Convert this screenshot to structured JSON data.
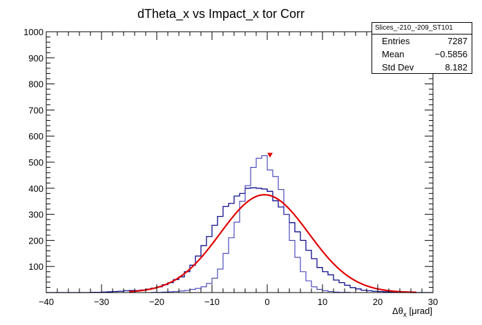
{
  "chart_data": {
    "type": "histogram",
    "title": "dTheta_x vs Impact_x tor Corr",
    "xlabel": "Δθ_x [μrad]",
    "xlabel_main": "Δθ",
    "xlabel_sub": "x",
    "xlabel_unit": " [μrad]",
    "xlim": [
      -40,
      30
    ],
    "ylim": [
      0,
      1000
    ],
    "x_ticks": [
      -40,
      -30,
      -20,
      -10,
      0,
      10,
      20,
      30
    ],
    "y_ticks": [
      100,
      200,
      300,
      400,
      500,
      600,
      700,
      800,
      900,
      1000
    ],
    "y_tick_labels": [
      "100",
      "200",
      "300",
      "400",
      "500",
      "600",
      "700",
      "800",
      "900",
      "1000"
    ],
    "x_tick_labels": [
      "−40",
      "−30",
      "−20",
      "−10",
      "0",
      "10",
      "20",
      "30"
    ],
    "bin_width": 1,
    "series": [
      {
        "kind": "histogram",
        "color": "#0a0a8c",
        "x": [
          -40,
          -39,
          -38,
          -37,
          -36,
          -35,
          -34,
          -33,
          -32,
          -31,
          -30,
          -29,
          -28,
          -27,
          -26,
          -25,
          -24,
          -23,
          -22,
          -21,
          -20,
          -19,
          -18,
          -17,
          -16,
          -15,
          -14,
          -13,
          -12,
          -11,
          -10,
          -9,
          -8,
          -7,
          -6,
          -5,
          -4,
          -3,
          -2,
          -1,
          0,
          1,
          2,
          3,
          4,
          5,
          6,
          7,
          8,
          9,
          10,
          11,
          12,
          13,
          14,
          15,
          16,
          17,
          18,
          19,
          20,
          21,
          22,
          23,
          24,
          25,
          26,
          27,
          28,
          29
        ],
        "values": [
          0,
          0,
          0,
          0,
          0,
          0,
          0,
          0,
          1,
          1,
          2,
          3,
          4,
          5,
          7,
          8,
          8,
          10,
          13,
          17,
          22,
          30,
          38,
          50,
          60,
          80,
          105,
          140,
          180,
          215,
          258,
          292,
          330,
          342,
          370,
          380,
          400,
          402,
          400,
          397,
          388,
          352,
          328,
          300,
          268,
          233,
          200,
          162,
          130,
          96,
          80,
          68,
          48,
          38,
          28,
          19,
          14,
          9,
          7,
          5,
          4,
          3,
          2,
          1,
          1,
          1,
          0,
          0,
          0,
          0
        ]
      },
      {
        "kind": "histogram",
        "color": "#3a3ab8",
        "x": [
          -40,
          -39,
          -38,
          -37,
          -36,
          -35,
          -34,
          -33,
          -32,
          -31,
          -30,
          -29,
          -28,
          -27,
          -26,
          -25,
          -24,
          -23,
          -22,
          -21,
          -20,
          -19,
          -18,
          -17,
          -16,
          -15,
          -14,
          -13,
          -12,
          -11,
          -10,
          -9,
          -8,
          -7,
          -6,
          -5,
          -4,
          -3,
          -2,
          -1,
          0,
          1,
          2,
          3,
          4,
          5,
          6,
          7,
          8,
          9,
          10,
          11,
          12,
          13,
          14,
          15,
          16,
          17,
          18,
          19,
          20,
          21,
          22,
          23,
          24,
          25,
          26,
          27,
          28,
          29
        ],
        "values": [
          0,
          0,
          0,
          0,
          0,
          0,
          0,
          0,
          0,
          0,
          0,
          0,
          0,
          0,
          0,
          0,
          0,
          0,
          0,
          1,
          1,
          2,
          3,
          4,
          6,
          8,
          12,
          16,
          22,
          35,
          55,
          90,
          150,
          210,
          270,
          350,
          410,
          480,
          515,
          525,
          470,
          445,
          395,
          300,
          200,
          135,
          80,
          45,
          22,
          12,
          7,
          4,
          2,
          1,
          1,
          0,
          0,
          0,
          0,
          0,
          0,
          0,
          0,
          0,
          0,
          0,
          0,
          0,
          0,
          0
        ]
      },
      {
        "kind": "fit-curve",
        "function": "gaus",
        "color": "#e00000",
        "constant": 375,
        "mean": -0.5,
        "sigma": 8.0,
        "x_range": [
          -25,
          27
        ]
      }
    ],
    "peak_marker": {
      "x": 0.5,
      "y": 525,
      "color": "#e00000"
    }
  },
  "stats_box": {
    "name": "Slices_-210_-209_ST101",
    "rows": [
      {
        "label": "Entries",
        "value": "7287"
      },
      {
        "label": "Mean",
        "value": "−0.5856"
      },
      {
        "label": "Std Dev",
        "value": "8.182"
      }
    ]
  }
}
